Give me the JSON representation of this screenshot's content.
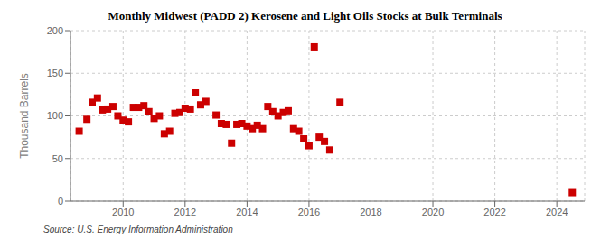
{
  "chart_data": {
    "type": "scatter",
    "title": "Monthly Midwest (PADD 2) Kerosene and Light Oils Stocks at Bulk Terminals",
    "y_label": "Thousand Barrels",
    "annotations": [
      "Source: U.S. Energy Information Administration"
    ],
    "x": [
      2008.58,
      2008.83,
      2009.0,
      2009.17,
      2009.33,
      2009.5,
      2009.67,
      2009.83,
      2010.0,
      2010.17,
      2010.33,
      2010.5,
      2010.67,
      2010.83,
      2011.0,
      2011.17,
      2011.33,
      2011.5,
      2011.67,
      2011.83,
      2012.0,
      2012.17,
      2012.33,
      2012.5,
      2012.67,
      2013.0,
      2013.17,
      2013.33,
      2013.5,
      2013.67,
      2013.83,
      2014.0,
      2014.17,
      2014.33,
      2014.5,
      2014.67,
      2014.83,
      2015.0,
      2015.17,
      2015.33,
      2015.5,
      2015.67,
      2015.83,
      2016.0,
      2016.17,
      2016.33,
      2016.5,
      2016.67,
      2017.0,
      2024.5
    ],
    "values": [
      82,
      96,
      116,
      121,
      107,
      108,
      111,
      100,
      95,
      93,
      110,
      110,
      112,
      105,
      97,
      100,
      79,
      82,
      103,
      104,
      109,
      108,
      127,
      113,
      117,
      101,
      91,
      90,
      68,
      90,
      91,
      88,
      85,
      89,
      85,
      111,
      105,
      100,
      104,
      106,
      85,
      82,
      73,
      65,
      181,
      75,
      70,
      60,
      116,
      10
    ],
    "color": "#cc0000",
    "marker": "square",
    "xlim": [
      2008.3,
      2024.9
    ],
    "xticks": [
      2010,
      2012,
      2014,
      2016,
      2018,
      2020,
      2022,
      2024
    ],
    "ylim": [
      0,
      200
    ],
    "yticks": [
      0,
      50,
      100,
      150,
      200
    ],
    "grid": true
  }
}
